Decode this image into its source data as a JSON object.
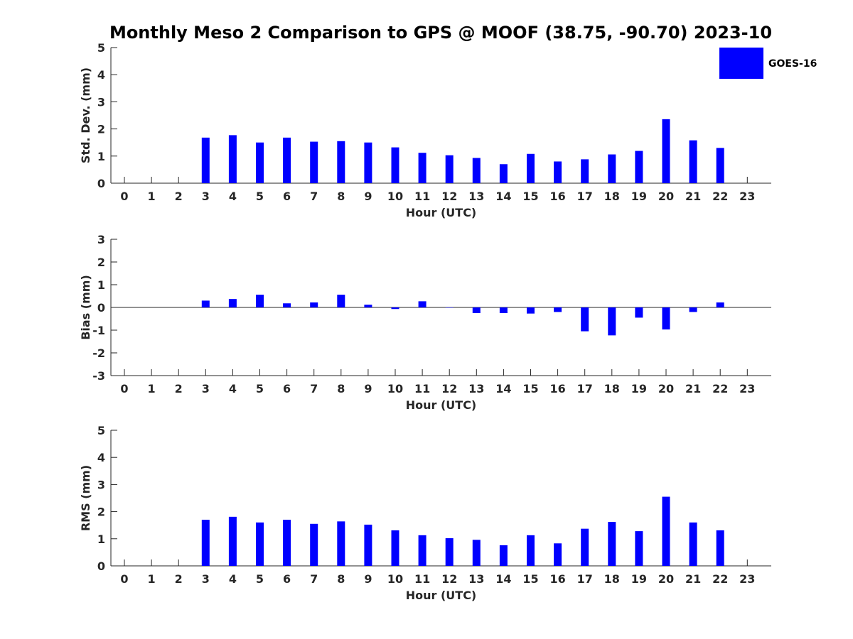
{
  "title": "Monthly Meso 2 Comparison to GPS @ MOOF (38.75, -90.70) 2023-10",
  "colors": {
    "bar": "#0000ff",
    "axis": "#262626"
  },
  "legend": {
    "label": "GOES-16",
    "placement": "top-right"
  },
  "chart_data": [
    {
      "type": "bar",
      "id": "stddev",
      "xlabel": "Hour (UTC)",
      "ylabel": "Std. Dev. (mm)",
      "ylim": [
        0,
        5
      ],
      "yticks": [
        0,
        1,
        2,
        3,
        4,
        5
      ],
      "categories": [
        0,
        1,
        2,
        3,
        4,
        5,
        6,
        7,
        8,
        9,
        10,
        11,
        12,
        13,
        14,
        15,
        16,
        17,
        18,
        19,
        20,
        21,
        22,
        23
      ],
      "series": [
        {
          "name": "GOES-16",
          "values": [
            null,
            null,
            null,
            1.68,
            1.77,
            1.5,
            1.68,
            1.53,
            1.55,
            1.5,
            1.32,
            1.12,
            1.03,
            0.93,
            0.7,
            1.08,
            0.8,
            0.88,
            1.06,
            1.19,
            2.36,
            1.58,
            1.3,
            null
          ]
        }
      ]
    },
    {
      "type": "bar",
      "id": "bias",
      "xlabel": "Hour (UTC)",
      "ylabel": "Bias (mm)",
      "ylim": [
        -3,
        3
      ],
      "yticks": [
        -3,
        -2,
        -1,
        0,
        1,
        2,
        3
      ],
      "zero_line": true,
      "categories": [
        0,
        1,
        2,
        3,
        4,
        5,
        6,
        7,
        8,
        9,
        10,
        11,
        12,
        13,
        14,
        15,
        16,
        17,
        18,
        19,
        20,
        21,
        22,
        23
      ],
      "series": [
        {
          "name": "GOES-16",
          "values": [
            null,
            null,
            null,
            0.3,
            0.37,
            0.56,
            0.18,
            0.22,
            0.56,
            0.12,
            -0.07,
            0.27,
            0.0,
            -0.25,
            -0.25,
            -0.27,
            -0.2,
            -1.05,
            -1.23,
            -0.45,
            -0.97,
            -0.2,
            0.22,
            null
          ]
        }
      ]
    },
    {
      "type": "bar",
      "id": "rms",
      "xlabel": "Hour (UTC)",
      "ylabel": "RMS (mm)",
      "ylim": [
        0,
        5
      ],
      "yticks": [
        0,
        1,
        2,
        3,
        4,
        5
      ],
      "categories": [
        0,
        1,
        2,
        3,
        4,
        5,
        6,
        7,
        8,
        9,
        10,
        11,
        12,
        13,
        14,
        15,
        16,
        17,
        18,
        19,
        20,
        21,
        22,
        23
      ],
      "series": [
        {
          "name": "GOES-16",
          "values": [
            null,
            null,
            null,
            1.7,
            1.81,
            1.6,
            1.7,
            1.55,
            1.64,
            1.52,
            1.31,
            1.13,
            1.02,
            0.96,
            0.76,
            1.13,
            0.83,
            1.37,
            1.62,
            1.28,
            2.55,
            1.6,
            1.31,
            null
          ]
        }
      ]
    }
  ]
}
